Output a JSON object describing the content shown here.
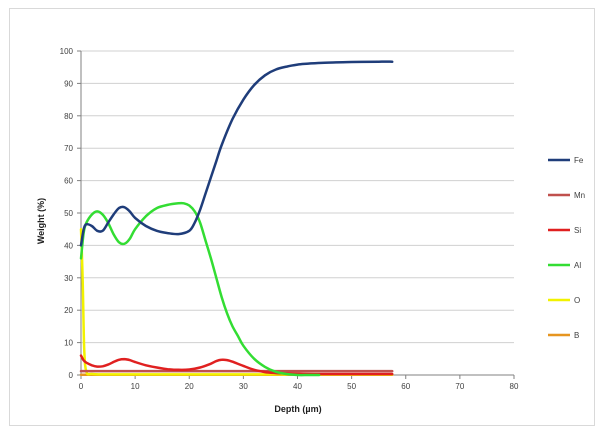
{
  "chart_data": {
    "type": "line",
    "title": "",
    "xlabel": "Depth (µm)",
    "ylabel": "Weight (%)",
    "xlim": [
      0,
      80
    ],
    "ylim": [
      0,
      100
    ],
    "x_ticks": [
      "0",
      "10",
      "20",
      "30",
      "40",
      "50",
      "60",
      "70",
      "80"
    ],
    "y_ticks": [
      "0",
      "10",
      "20",
      "30",
      "40",
      "50",
      "60",
      "70",
      "80",
      "90",
      "100"
    ],
    "grid": "horizontal",
    "legend_position": "right",
    "series": [
      {
        "name": "Fe",
        "color": "#1f3d7a",
        "x": [
          0,
          0.5,
          1,
          2,
          3,
          4,
          5,
          6,
          7,
          8,
          9,
          10,
          12,
          14,
          16,
          18,
          20,
          21,
          22,
          23,
          24,
          25,
          26,
          28,
          30,
          32,
          34,
          36,
          38,
          40,
          42,
          45,
          50,
          55,
          57.5
        ],
        "y": [
          40,
          45,
          46.5,
          46,
          44.5,
          44.5,
          47,
          49.5,
          51.5,
          51.8,
          50.5,
          48.5,
          46,
          44.5,
          43.8,
          43.5,
          44.5,
          47,
          51,
          56,
          61,
          66,
          71,
          79,
          85,
          89.5,
          92.5,
          94.3,
          95.2,
          95.8,
          96.1,
          96.4,
          96.6,
          96.7,
          96.7
        ]
      },
      {
        "name": "Mn",
        "color": "#c0504d",
        "x": [
          0,
          57.5
        ],
        "y": [
          1.2,
          1.2
        ]
      },
      {
        "name": "Si",
        "color": "#e02020",
        "x": [
          0,
          0.5,
          1,
          2,
          3,
          4,
          5,
          6,
          7,
          8,
          9,
          10,
          12,
          14,
          16,
          18,
          20,
          22,
          24,
          25,
          26,
          27,
          28,
          30,
          32,
          34,
          36,
          38,
          40,
          45,
          50,
          55,
          57.5
        ],
        "y": [
          6,
          4.5,
          3.8,
          3,
          2.6,
          2.7,
          3.2,
          4,
          4.7,
          4.9,
          4.6,
          4,
          3,
          2.3,
          1.8,
          1.6,
          1.7,
          2.3,
          3.5,
          4.3,
          4.7,
          4.6,
          4.1,
          2.8,
          1.6,
          0.9,
          0.6,
          0.5,
          0.4,
          0.3,
          0.3,
          0.3,
          0.3
        ]
      },
      {
        "name": "Al",
        "color": "#33dd33",
        "x": [
          0,
          0.5,
          1,
          2,
          3,
          4,
          5,
          6,
          7,
          8,
          9,
          10,
          12,
          14,
          16,
          18,
          19,
          20,
          21,
          22,
          23,
          24,
          25,
          26,
          27,
          28,
          29,
          30,
          32,
          34,
          36,
          38,
          40,
          42,
          44
        ],
        "y": [
          36,
          44,
          47,
          49.5,
          50.5,
          49.5,
          47,
          43.5,
          41,
          40.5,
          42,
          45,
          49,
          51.5,
          52.5,
          53,
          53,
          52.3,
          50.5,
          47,
          41.5,
          36,
          30,
          24,
          19,
          15,
          12,
          9,
          5,
          2.5,
          1,
          0.3,
          0,
          0,
          0
        ]
      },
      {
        "name": "O",
        "color": "#f2f200",
        "x": [
          0,
          0.3,
          0.6,
          1,
          2,
          5,
          10,
          20,
          30,
          40,
          50,
          57.5
        ],
        "y": [
          45,
          30,
          8,
          1,
          0.3,
          0.2,
          0.2,
          0.2,
          0.2,
          0.2,
          0.2,
          0.2
        ]
      },
      {
        "name": "B",
        "color": "#e69520",
        "x": [
          0,
          57.5
        ],
        "y": [
          0.1,
          0.1
        ]
      }
    ]
  }
}
